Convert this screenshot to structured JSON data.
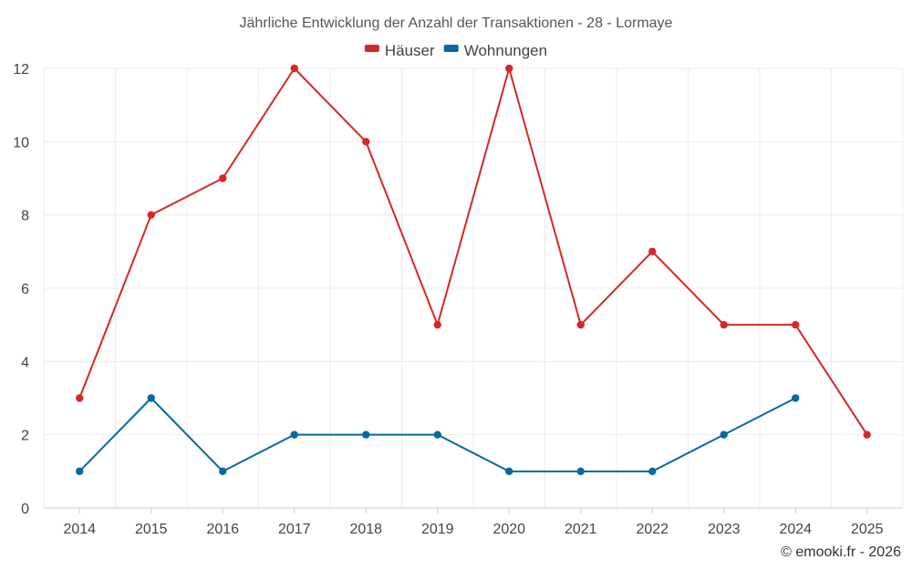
{
  "chart_data": {
    "type": "line",
    "title": "Jährliche Entwicklung der Anzahl der Transaktionen - 28 - Lormaye",
    "categories": [
      "2014",
      "2015",
      "2016",
      "2017",
      "2018",
      "2019",
      "2020",
      "2021",
      "2022",
      "2023",
      "2024",
      "2025"
    ],
    "series": [
      {
        "name": "Häuser",
        "color": "#d62728",
        "values": [
          3,
          8,
          9,
          12,
          10,
          5,
          12,
          5,
          7,
          5,
          5,
          2
        ]
      },
      {
        "name": "Wohnungen",
        "color": "#0868a0",
        "values": [
          1,
          3,
          1,
          2,
          2,
          2,
          1,
          1,
          1,
          2,
          3,
          null
        ]
      }
    ],
    "ylim": [
      0,
      12
    ],
    "yticks": [
      0,
      2,
      4,
      6,
      8,
      10,
      12
    ],
    "xlabel": "",
    "ylabel": "",
    "grid": true,
    "legend_position": "top-center"
  },
  "credit": "© emooki.fr - 2026"
}
